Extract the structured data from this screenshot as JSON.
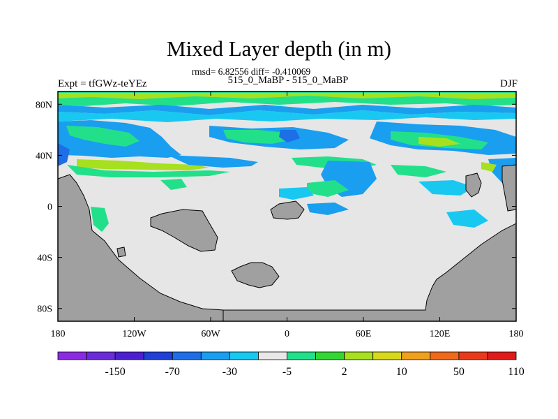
{
  "chart_data": {
    "type": "heatmap",
    "title": "Mixed Layer depth (in m)",
    "stats_line": "rmsd= 6.82556 diff= -0.410069",
    "subtitle": "515_0_MaBP - 515_0_MaBP",
    "left_label": "Expt = tfGWz-teYEz",
    "right_label": "DJF",
    "x_ticks": [
      "180",
      "120W",
      "60W",
      "0",
      "60E",
      "120E",
      "180"
    ],
    "y_ticks": [
      "80N",
      "40N",
      "0",
      "40S",
      "80S"
    ],
    "xlim": [
      -180,
      180
    ],
    "ylim": [
      -90,
      90
    ],
    "colorbar": {
      "colors": [
        "#8a2be2",
        "#6a2bd8",
        "#4b1fd0",
        "#1f3fd6",
        "#1e6ee6",
        "#1a9ef0",
        "#18c8f0",
        "#e8e8e8",
        "#22e08a",
        "#33d633",
        "#a6e01f",
        "#d8d81e",
        "#f0a01e",
        "#ee6a1a",
        "#e83a1a",
        "#e01a1a"
      ],
      "labels": [
        "-150",
        "-70",
        "-30",
        "-5",
        "2",
        "10",
        "50",
        "110"
      ]
    },
    "land_color": "#a0a0a0",
    "ocean_neutral_color": "#e6e6e6"
  }
}
